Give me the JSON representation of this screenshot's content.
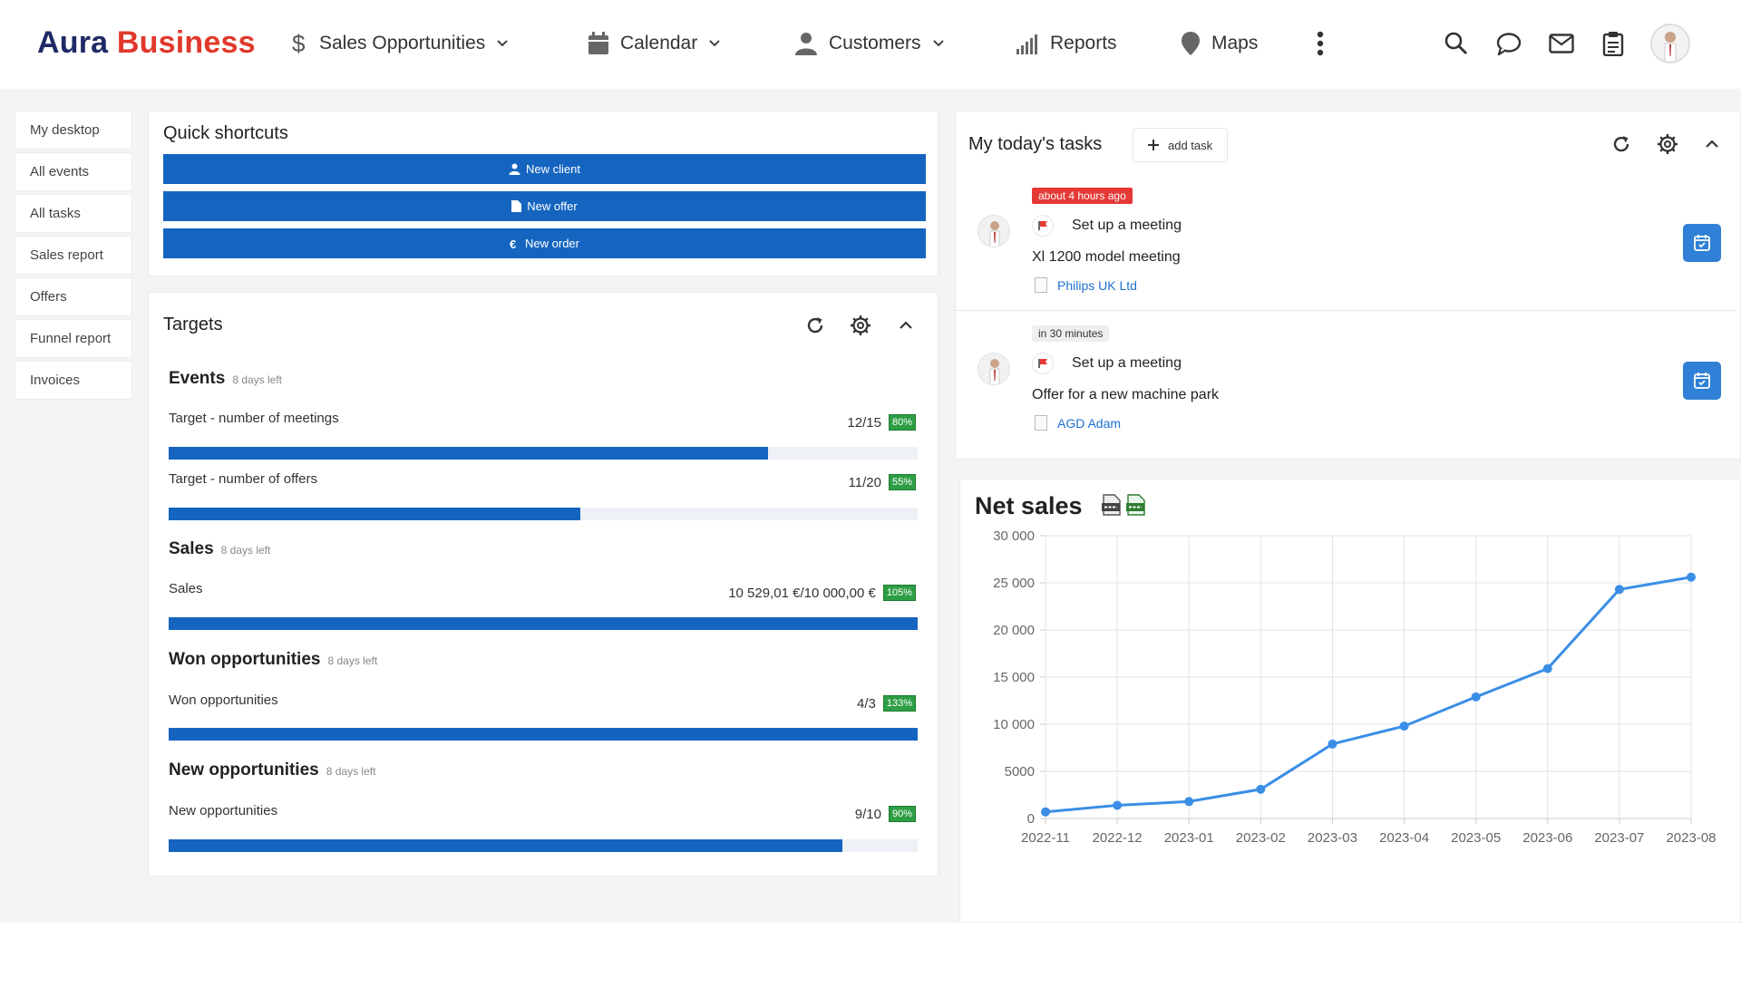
{
  "app": {
    "logo_part1": "Aura",
    "logo_part2": "Business",
    "nav": [
      {
        "label": "Sales Opportunities",
        "icon": "dollar-icon"
      },
      {
        "label": "Calendar",
        "icon": "calendar-icon"
      },
      {
        "label": "Customers",
        "icon": "user-icon"
      },
      {
        "label": "Reports",
        "icon": "bar-chart-icon"
      },
      {
        "label": "Maps",
        "icon": "map-pin-icon"
      }
    ],
    "toolbar_icons": [
      "search-icon",
      "chat-icon",
      "mail-icon",
      "clipboard-icon"
    ]
  },
  "sidebar": {
    "items": [
      {
        "label": "My desktop"
      },
      {
        "label": "All events"
      },
      {
        "label": "All tasks"
      },
      {
        "label": "Sales report"
      },
      {
        "label": "Offers"
      },
      {
        "label": "Funnel report"
      },
      {
        "label": "Invoices"
      }
    ]
  },
  "shortcuts": {
    "title": "Quick shortcuts",
    "buttons": [
      {
        "label": "New client",
        "icon": "user-icon"
      },
      {
        "label": "New offer",
        "icon": "file-icon"
      },
      {
        "label": "New order",
        "icon": "euro-icon"
      }
    ]
  },
  "targets": {
    "title": "Targets",
    "sections": [
      {
        "heading": "Events",
        "days_left": "8 days left",
        "rows": [
          {
            "label": "Target - number of meetings",
            "value": "12/15",
            "percent": "80%",
            "fill": 0.8
          },
          {
            "label": "Target - number of offers",
            "value": "11/20",
            "percent": "55%",
            "fill": 0.55
          }
        ]
      },
      {
        "heading": "Sales",
        "days_left": "8 days left",
        "rows": [
          {
            "label": "Sales",
            "value": "10 529,01 €/10 000,00 €",
            "percent": "105%",
            "fill": 1.0
          }
        ]
      },
      {
        "heading": "Won opportunities",
        "days_left": "8 days left",
        "rows": [
          {
            "label": "Won opportunities",
            "value": "4/3",
            "percent": "133%",
            "fill": 1.0
          }
        ]
      },
      {
        "heading": "New opportunities",
        "days_left": "8 days left",
        "rows": [
          {
            "label": "New opportunities",
            "value": "9/10",
            "percent": "90%",
            "fill": 0.9
          }
        ]
      }
    ]
  },
  "tasks": {
    "title": "My today's tasks",
    "add_label": "add task",
    "items": [
      {
        "time": "about 4 hours ago",
        "time_style": "overdue",
        "title": "Set up a meeting",
        "description": "Xl 1200 model meeting",
        "link": "Philips UK Ltd"
      },
      {
        "time": "in 30 minutes",
        "time_style": "upcoming",
        "title": "Set up a meeting",
        "description": "Offer for a new machine park",
        "link": "AGD Adam"
      }
    ]
  },
  "colors": {
    "primary": "#1565c0",
    "brand_dark": "#1f2a66",
    "brand_red": "#e0392b",
    "success": "#2e9e44",
    "overdue": "#e53935",
    "line": "#3a8ee6"
  },
  "chart_data": {
    "type": "line",
    "title": "Net sales",
    "x": [
      "2022-11",
      "2022-12",
      "2023-01",
      "2023-02",
      "2023-03",
      "2023-04",
      "2023-05",
      "2023-06",
      "2023-07",
      "2023-08"
    ],
    "series": [
      {
        "values": [
          700,
          1400,
          1800,
          3100,
          7900,
          9800,
          12900,
          15900,
          24300,
          25600
        ]
      }
    ],
    "ylim": [
      0,
      30000
    ],
    "yticks": [
      "0",
      "5000",
      "10 000",
      "15 000",
      "20 000",
      "25 000",
      "30 000"
    ],
    "grid": true
  }
}
